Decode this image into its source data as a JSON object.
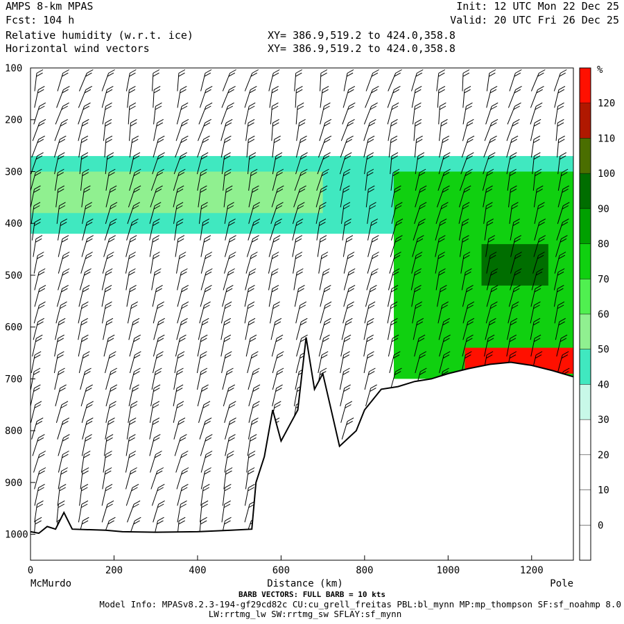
{
  "header": {
    "left_line1": "AMPS 8-km MPAS",
    "left_line2": "Fcst:  104 h",
    "left_line3": "Relative humidity (w.r.t. ice)",
    "left_line4": "Horizontal wind vectors",
    "right_line1": "Init: 12 UTC Mon 22 Dec 25",
    "right_line2": "Valid: 20 UTC Fri 26 Dec 25",
    "xy_line1": "XY= 386.9,519.2 to 424.0,358.8",
    "xy_line2": "XY= 386.9,519.2 to 424.0,358.8"
  },
  "footer": {
    "barb_note": "BARB VECTORS:  FULL BARB = 10 kts",
    "model_info": "Model Info: MPASv8.2.3-194-gf29cd82c CU:cu_grell_freitas PBL:bl_mynn MP:mp_thompson SF:sf_noahmp 8.0",
    "model_info2": "LW:rrtmg_lw SW:rrtmg_sw SFLAY:sf_mynn"
  },
  "chart_data": {
    "type": "cross-section",
    "title": "Relative humidity (w.r.t. ice)",
    "xlabel": "Distance (km)",
    "ylabel": "",
    "x_range": [
      0,
      1300
    ],
    "x_ticks": [
      0,
      200,
      400,
      600,
      800,
      1000,
      1200
    ],
    "x_end_labels": {
      "left": "McMurdo",
      "right": "Pole"
    },
    "y_range_hpa": [
      1050,
      100
    ],
    "y_ticks": [
      100,
      200,
      300,
      400,
      500,
      600,
      700,
      800,
      900,
      1000
    ],
    "colorbar": {
      "unit_label": "%",
      "levels": [
        0,
        10,
        20,
        30,
        40,
        50,
        60,
        70,
        80,
        90,
        100,
        110,
        120
      ],
      "colors": [
        "#ffffff",
        "#ffffff",
        "#ffffff",
        "#ffffff",
        "#c8f8e8",
        "#40e8c0",
        "#90f090",
        "#50f050",
        "#10d010",
        "#00a000",
        "#006e00",
        "#4a6e00",
        "#b01800",
        "#ff1000"
      ]
    },
    "terrain_hpa": [
      {
        "x": 0,
        "p": 995
      },
      {
        "x": 20,
        "p": 998
      },
      {
        "x": 40,
        "p": 985
      },
      {
        "x": 60,
        "p": 990
      },
      {
        "x": 80,
        "p": 958
      },
      {
        "x": 100,
        "p": 990
      },
      {
        "x": 180,
        "p": 992
      },
      {
        "x": 220,
        "p": 995
      },
      {
        "x": 300,
        "p": 996
      },
      {
        "x": 400,
        "p": 995
      },
      {
        "x": 480,
        "p": 992
      },
      {
        "x": 530,
        "p": 990
      },
      {
        "x": 540,
        "p": 900
      },
      {
        "x": 560,
        "p": 850
      },
      {
        "x": 580,
        "p": 760
      },
      {
        "x": 600,
        "p": 820
      },
      {
        "x": 620,
        "p": 790
      },
      {
        "x": 640,
        "p": 760
      },
      {
        "x": 660,
        "p": 620
      },
      {
        "x": 680,
        "p": 720
      },
      {
        "x": 700,
        "p": 690
      },
      {
        "x": 720,
        "p": 760
      },
      {
        "x": 740,
        "p": 830
      },
      {
        "x": 760,
        "p": 815
      },
      {
        "x": 780,
        "p": 800
      },
      {
        "x": 800,
        "p": 760
      },
      {
        "x": 840,
        "p": 720
      },
      {
        "x": 880,
        "p": 715
      },
      {
        "x": 920,
        "p": 705
      },
      {
        "x": 960,
        "p": 700
      },
      {
        "x": 1000,
        "p": 690
      },
      {
        "x": 1050,
        "p": 680
      },
      {
        "x": 1100,
        "p": 672
      },
      {
        "x": 1150,
        "p": 668
      },
      {
        "x": 1200,
        "p": 674
      },
      {
        "x": 1250,
        "p": 684
      },
      {
        "x": 1300,
        "p": 696
      }
    ],
    "rh_features": [
      {
        "name": "upper moist layer",
        "x": [
          0,
          1300
        ],
        "p": [
          270,
          420
        ],
        "rh": 40
      },
      {
        "name": "upper core",
        "x": [
          0,
          700
        ],
        "p": [
          300,
          380
        ],
        "rh": 50
      },
      {
        "name": "moist region near pole",
        "x": [
          870,
          1300
        ],
        "p": [
          300,
          700
        ],
        "rh": 70
      },
      {
        "name": "core near pole",
        "x": [
          1080,
          1240
        ],
        "p": [
          440,
          520
        ],
        "rh": 90
      },
      {
        "name": "supersaturated layer above surface",
        "x": [
          1040,
          1300
        ],
        "p": [
          640,
          690
        ],
        "rh": 120
      }
    ]
  }
}
